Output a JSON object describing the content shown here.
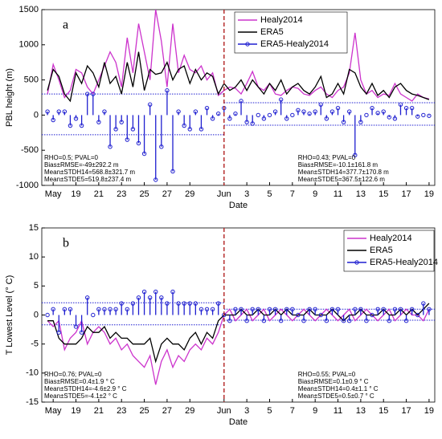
{
  "chart_data": [
    {
      "type": "line",
      "panel_label": "a",
      "ylabel": "PBL height (m)",
      "xlabel": "Date",
      "xlim": [
        16,
        50.5
      ],
      "ylim": [
        -1000,
        1500
      ],
      "yticks": [
        -1000,
        -500,
        0,
        500,
        1000,
        1500
      ],
      "xticks": [
        {
          "value": 17,
          "label": "May"
        },
        19,
        21,
        23,
        25,
        27,
        29,
        {
          "value": 32,
          "label": "Jun"
        },
        {
          "value": 34,
          "label": "3"
        },
        {
          "value": 36,
          "label": "5"
        },
        {
          "value": 38,
          "label": "7"
        },
        {
          "value": 40,
          "label": "9"
        },
        {
          "value": 42,
          "label": "11"
        },
        {
          "value": 44,
          "label": "13"
        },
        {
          "value": 46,
          "label": "15"
        },
        {
          "value": 48,
          "label": "17"
        },
        {
          "value": 50,
          "label": "19"
        }
      ],
      "legend": "upper right",
      "vline": 32,
      "x": [
        16.5,
        17,
        17.5,
        18,
        18.5,
        19,
        19.5,
        20,
        20.5,
        21,
        21.5,
        22,
        22.5,
        23,
        23.5,
        24,
        24.5,
        25,
        25.5,
        26,
        26.5,
        27,
        27.5,
        28,
        28.5,
        29,
        29.5,
        30,
        30.5,
        31,
        31.5,
        32,
        32.5,
        33,
        33.5,
        34,
        34.5,
        35,
        35.5,
        36,
        36.5,
        37,
        37.5,
        38,
        38.5,
        39,
        39.5,
        40,
        40.5,
        41,
        41.5,
        42,
        42.5,
        43,
        43.5,
        44,
        44.5,
        45,
        45.5,
        46,
        46.5,
        47,
        47.5,
        48,
        48.5,
        49,
        49.5,
        50
      ],
      "series": [
        {
          "name": "Healy2014",
          "color": "#cc33cc",
          "values": [
            300,
            720,
            500,
            250,
            350,
            650,
            600,
            400,
            300,
            500,
            700,
            900,
            750,
            400,
            1100,
            600,
            1300,
            900,
            500,
            1500,
            1050,
            400,
            1300,
            600,
            850,
            650,
            600,
            700,
            500,
            600,
            280,
            350,
            400,
            380,
            300,
            450,
            620,
            400,
            350,
            450,
            300,
            280,
            350,
            400,
            380,
            300,
            280,
            350,
            400,
            300,
            250,
            350,
            400,
            600,
            1170,
            500,
            300,
            350,
            250,
            300,
            280,
            450,
            300,
            250,
            200,
            300,
            250,
            230
          ]
        },
        {
          "name": "ERA5",
          "color": "#000000",
          "values": [
            350,
            650,
            550,
            300,
            200,
            600,
            450,
            700,
            600,
            400,
            750,
            450,
            550,
            300,
            750,
            400,
            900,
            350,
            650,
            580,
            600,
            750,
            500,
            650,
            700,
            450,
            650,
            500,
            600,
            550,
            300,
            450,
            350,
            400,
            500,
            350,
            500,
            400,
            300,
            450,
            350,
            500,
            300,
            400,
            450,
            350,
            300,
            400,
            550,
            250,
            300,
            450,
            300,
            650,
            600,
            400,
            300,
            450,
            280,
            350,
            250,
            400,
            450,
            350,
            300,
            280,
            250,
            220
          ]
        },
        {
          "name": "ERA5-Healy2014",
          "color": "#1f1fd0",
          "stem": true,
          "values": [
            50,
            -70,
            50,
            50,
            -150,
            -50,
            -150,
            300,
            300,
            -100,
            50,
            -450,
            -200,
            -100,
            -350,
            -200,
            -400,
            -550,
            150,
            -920,
            -450,
            350,
            -800,
            50,
            -150,
            -200,
            50,
            -200,
            100,
            -50,
            20,
            100,
            -50,
            20,
            200,
            -100,
            -120,
            0,
            -50,
            0,
            50,
            220,
            -50,
            0,
            70,
            50,
            20,
            50,
            150,
            -50,
            50,
            100,
            -100,
            50,
            -570,
            -100,
            0,
            100,
            30,
            50,
            -30,
            -50,
            150,
            100,
            100,
            -20,
            0,
            -10
          ]
        }
      ],
      "mean_lines": [
        {
          "x": [
            16,
            32
          ],
          "y": 300
        },
        {
          "x": [
            16,
            32
          ],
          "y": -280
        },
        {
          "x": [
            32,
            50.5
          ],
          "y": 176
        },
        {
          "x": [
            32,
            50.5
          ],
          "y": -144
        }
      ],
      "annotations": [
        {
          "lines": [
            "RHO=0.5; PVAL=0",
            "Bias±RMSE=-49±292.2 m",
            "Mean±STDH14=568.8±321.7 m",
            "Mean±STDE5=519.8±237.4 m"
          ]
        },
        {
          "lines": [
            "RHO=0.43; PVAL=0",
            "Bias±RMSE=-10.1±161.8 m",
            "Mean±STDH14=377.7±170.8 m",
            "Mean±STDE5=367.5±122.6 m"
          ]
        }
      ]
    },
    {
      "type": "line",
      "panel_label": "b",
      "ylabel": "T Lowest Level (° C)",
      "xlabel": "Date",
      "xlim": [
        16,
        50.5
      ],
      "ylim": [
        -15,
        15
      ],
      "yticks": [
        -15,
        -10,
        -5,
        0,
        5,
        10,
        15
      ],
      "xticks": [
        {
          "value": 17,
          "label": "May"
        },
        19,
        21,
        23,
        25,
        27,
        29,
        {
          "value": 32,
          "label": "Jun"
        },
        {
          "value": 34,
          "label": "3"
        },
        {
          "value": 36,
          "label": "5"
        },
        {
          "value": 38,
          "label": "7"
        },
        {
          "value": 40,
          "label": "9"
        },
        {
          "value": 42,
          "label": "11"
        },
        {
          "value": 44,
          "label": "13"
        },
        {
          "value": 46,
          "label": "15"
        },
        {
          "value": 48,
          "label": "17"
        },
        {
          "value": 50,
          "label": "19"
        }
      ],
      "legend": "upper right",
      "vline": 32,
      "x": [
        16.5,
        17,
        17.5,
        18,
        18.5,
        19,
        19.5,
        20,
        20.5,
        21,
        21.5,
        22,
        22.5,
        23,
        23.5,
        24,
        24.5,
        25,
        25.5,
        26,
        26.5,
        27,
        27.5,
        28,
        28.5,
        29,
        29.5,
        30,
        30.5,
        31,
        31.5,
        32,
        32.5,
        33,
        33.5,
        34,
        34.5,
        35,
        35.5,
        36,
        36.5,
        37,
        37.5,
        38,
        38.5,
        39,
        39.5,
        40,
        40.5,
        41,
        41.5,
        42,
        42.5,
        43,
        43.5,
        44,
        44.5,
        45,
        45.5,
        46,
        46.5,
        47,
        47.5,
        48,
        48.5,
        49,
        49.5,
        50
      ],
      "series": [
        {
          "name": "Healy2014",
          "color": "#cc33cc",
          "values": [
            -1,
            -2,
            -1,
            -6,
            -4,
            -3,
            -1,
            -5,
            -3,
            -2,
            -3,
            -5,
            -4,
            -6,
            -5,
            -7,
            -8,
            -9,
            -7,
            -12,
            -8,
            -6,
            -9,
            -7,
            -8,
            -6,
            -5,
            -6,
            -4,
            -5,
            -3,
            0,
            1,
            -1,
            0,
            1,
            -1,
            0,
            1,
            -1,
            0,
            1,
            0,
            -1,
            0,
            1,
            0,
            -1,
            0,
            1,
            0,
            -1,
            0,
            1,
            -1,
            0,
            1,
            0,
            -1,
            0,
            1,
            -1,
            0,
            1,
            0,
            0,
            -1,
            1
          ]
        },
        {
          "name": "ERA5",
          "color": "#000000",
          "values": [
            -1,
            -1,
            -4,
            -5,
            -5,
            -5,
            -4,
            -2,
            -3,
            -3,
            -2,
            -4,
            -3,
            -4,
            -4,
            -5,
            -5,
            -5,
            -4,
            -8,
            -5,
            -4,
            -5,
            -5,
            -6,
            -4,
            -3,
            -5,
            -3,
            -4,
            -1,
            0,
            0,
            0,
            1,
            0,
            0,
            1,
            0,
            0,
            1,
            0,
            1,
            0,
            0,
            0,
            1,
            0,
            0,
            0,
            1,
            0,
            -1,
            0,
            0,
            1,
            0,
            0,
            0,
            1,
            0,
            0,
            1,
            0,
            1,
            0,
            1,
            2
          ]
        },
        {
          "name": "ERA5-Healy2014",
          "color": "#1f1fd0",
          "stem": true,
          "values": [
            0,
            1,
            -3,
            1,
            1,
            -2,
            -3,
            3,
            0,
            1,
            1,
            1,
            1,
            2,
            1,
            2,
            3,
            4,
            3,
            4,
            3,
            2,
            4,
            2,
            2,
            2,
            2,
            1,
            1,
            1,
            2,
            0,
            -1,
            1,
            1,
            -1,
            1,
            1,
            -1,
            1,
            1,
            -1,
            1,
            1,
            0,
            -1,
            1,
            1,
            0,
            -1,
            1,
            1,
            -1,
            -1,
            1,
            1,
            -1,
            0,
            1,
            1,
            -1,
            1,
            1,
            -1,
            1,
            0,
            2,
            1
          ]
        }
      ],
      "mean_lines": [
        {
          "x": [
            16,
            32
          ],
          "y": 2.1
        },
        {
          "x": [
            16,
            32
          ],
          "y": -1.7
        },
        {
          "x": [
            32,
            50.5
          ],
          "y": 1
        },
        {
          "x": [
            32,
            50.5
          ],
          "y": -0.9
        }
      ],
      "annotations": [
        {
          "lines": [
            "RHO=0.76; PVAL=0",
            "Bias±RMSE=0.4±1.9 ° C",
            "Mean±STDH14=-4.6±2.9 ° C",
            "Mean±STDE5=-4.1±2 ° C"
          ]
        },
        {
          "lines": [
            "RHO=0.55; PVAL=0",
            "Bias±RMSE=0.1±0.9 ° C",
            "Mean±STDH14=0.4±1.1 ° C",
            "Mean±STDE5=0.5±0.7 ° C"
          ]
        }
      ]
    }
  ]
}
